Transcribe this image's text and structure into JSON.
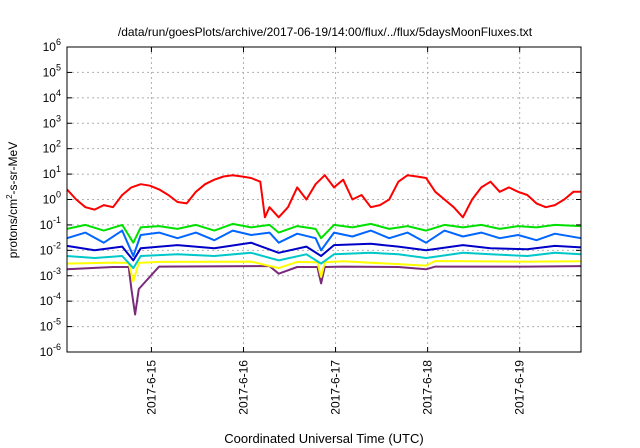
{
  "chart_data": {
    "type": "line",
    "title": "/data/run/goesPlots/archive/2017-06-19/14:00/flux/../flux/5daysMoonFluxes.txt",
    "xlabel": "Coordinated Universal Time (UTC)",
    "ylabel": {
      "prefix": "protons/cm",
      "sup": "2",
      "suffix": "-s-sr-MeV"
    },
    "yscale": "log",
    "ylim": [
      1e-06,
      1000000.0
    ],
    "ytick_exponents": [
      -6,
      -5,
      -4,
      -3,
      -2,
      -1,
      0,
      1,
      2,
      3,
      4,
      5,
      6
    ],
    "ytick_base": "10",
    "xlim": [
      "2017-06-14 02:00",
      "2017-06-19 16:00"
    ],
    "xtick_labels": [
      "2017-6-15",
      "2017-6-16",
      "2017-6-17",
      "2017-6-18",
      "2017-6-19"
    ],
    "xtick_days_from_xmin": [
      0.917,
      1.917,
      2.917,
      3.917,
      4.917
    ],
    "x_span_days": 5.583,
    "grid": true,
    "series": [
      {
        "color": "#7a2a7a",
        "x": [
          0,
          0.5,
          0.67,
          0.7,
          0.74,
          0.78,
          1.0,
          2.2,
          2.3,
          2.5,
          2.72,
          2.76,
          2.8,
          3.0,
          3.6,
          3.9,
          4.0,
          4.5,
          5.0,
          5.583
        ],
        "y": [
          0.0018,
          0.0022,
          0.0022,
          0.0003,
          3e-05,
          0.0003,
          0.0023,
          0.0024,
          0.0012,
          0.0022,
          0.0022,
          0.0005,
          0.0022,
          0.0023,
          0.0022,
          0.0018,
          0.0023,
          0.0023,
          0.0023,
          0.0024
        ]
      },
      {
        "color": "#ffff00",
        "x": [
          0,
          0.5,
          0.67,
          0.72,
          0.78,
          1.0,
          2.0,
          2.3,
          2.5,
          2.72,
          2.76,
          2.8,
          3.0,
          3.9,
          4.0,
          5.0,
          5.583
        ],
        "y": [
          0.003,
          0.0033,
          0.0032,
          0.0006,
          0.0032,
          0.0035,
          0.0036,
          0.002,
          0.0035,
          0.0034,
          0.0009,
          0.0034,
          0.0037,
          0.0025,
          0.0038,
          0.0036,
          0.0037
        ]
      },
      {
        "color": "#00c8c8",
        "x": [
          0,
          0.3,
          0.6,
          0.72,
          0.8,
          1.2,
          1.6,
          2.0,
          2.3,
          2.6,
          2.76,
          2.9,
          3.3,
          3.6,
          3.9,
          4.3,
          4.6,
          5.0,
          5.3,
          5.583
        ],
        "y": [
          0.006,
          0.005,
          0.006,
          0.002,
          0.006,
          0.007,
          0.006,
          0.008,
          0.004,
          0.007,
          0.003,
          0.007,
          0.008,
          0.007,
          0.005,
          0.008,
          0.007,
          0.006,
          0.008,
          0.007
        ]
      },
      {
        "color": "#0000c8",
        "x": [
          0,
          0.3,
          0.6,
          0.72,
          0.8,
          1.2,
          1.6,
          2.0,
          2.3,
          2.6,
          2.76,
          2.9,
          3.3,
          3.6,
          3.9,
          4.3,
          4.6,
          5.0,
          5.3,
          5.583
        ],
        "y": [
          0.015,
          0.01,
          0.014,
          0.004,
          0.012,
          0.016,
          0.012,
          0.02,
          0.008,
          0.014,
          0.006,
          0.016,
          0.018,
          0.014,
          0.01,
          0.016,
          0.012,
          0.011,
          0.015,
          0.013
        ]
      },
      {
        "color": "#0066ff",
        "x": [
          0,
          0.2,
          0.4,
          0.6,
          0.72,
          0.8,
          1.0,
          1.2,
          1.4,
          1.6,
          1.8,
          2.0,
          2.2,
          2.3,
          2.5,
          2.7,
          2.76,
          2.9,
          3.1,
          3.3,
          3.5,
          3.7,
          3.9,
          4.1,
          4.3,
          4.5,
          4.7,
          4.9,
          5.1,
          5.3,
          5.583
        ],
        "y": [
          0.03,
          0.05,
          0.02,
          0.06,
          0.006,
          0.04,
          0.05,
          0.03,
          0.05,
          0.025,
          0.06,
          0.04,
          0.05,
          0.02,
          0.045,
          0.03,
          0.01,
          0.05,
          0.035,
          0.06,
          0.03,
          0.05,
          0.02,
          0.06,
          0.035,
          0.05,
          0.03,
          0.04,
          0.025,
          0.045,
          0.03
        ]
      },
      {
        "color": "#00e000",
        "x": [
          0,
          0.2,
          0.4,
          0.6,
          0.72,
          0.8,
          1.0,
          1.2,
          1.4,
          1.6,
          1.8,
          2.0,
          2.2,
          2.3,
          2.5,
          2.7,
          2.76,
          2.9,
          3.1,
          3.3,
          3.5,
          3.7,
          3.9,
          4.1,
          4.3,
          4.5,
          4.7,
          4.9,
          5.1,
          5.3,
          5.583
        ],
        "y": [
          0.07,
          0.1,
          0.06,
          0.1,
          0.02,
          0.08,
          0.09,
          0.07,
          0.1,
          0.06,
          0.11,
          0.08,
          0.1,
          0.05,
          0.09,
          0.07,
          0.03,
          0.1,
          0.08,
          0.11,
          0.07,
          0.09,
          0.06,
          0.1,
          0.08,
          0.1,
          0.07,
          0.09,
          0.08,
          0.1,
          0.09
        ]
      },
      {
        "color": "#ff0000",
        "x": [
          0,
          0.1,
          0.2,
          0.3,
          0.4,
          0.5,
          0.6,
          0.7,
          0.8,
          0.9,
          1.0,
          1.1,
          1.2,
          1.3,
          1.4,
          1.5,
          1.6,
          1.7,
          1.8,
          1.9,
          2.0,
          2.1,
          2.15,
          2.2,
          2.3,
          2.4,
          2.5,
          2.6,
          2.7,
          2.8,
          2.9,
          3.0,
          3.1,
          3.2,
          3.3,
          3.4,
          3.5,
          3.6,
          3.7,
          3.8,
          3.9,
          4.0,
          4.1,
          4.2,
          4.3,
          4.4,
          4.5,
          4.6,
          4.7,
          4.8,
          4.9,
          5.0,
          5.1,
          5.2,
          5.3,
          5.4,
          5.5,
          5.583
        ],
        "y": [
          2.5,
          1.0,
          0.5,
          0.4,
          0.6,
          0.5,
          1.5,
          3.0,
          4.0,
          3.5,
          2.5,
          1.5,
          0.8,
          0.7,
          2.0,
          4.0,
          6.0,
          8.0,
          9.0,
          8.0,
          7.0,
          5.0,
          0.2,
          0.5,
          0.2,
          0.5,
          3.0,
          1.0,
          4.0,
          9.0,
          3.0,
          6.0,
          1.0,
          1.5,
          0.5,
          0.6,
          1.0,
          5.0,
          9.0,
          8.0,
          7.0,
          2.0,
          1.0,
          0.5,
          0.2,
          1.0,
          3.0,
          5.0,
          2.0,
          3.0,
          2.0,
          1.5,
          0.7,
          0.5,
          0.6,
          1.0,
          2.0,
          2.0
        ]
      }
    ]
  }
}
